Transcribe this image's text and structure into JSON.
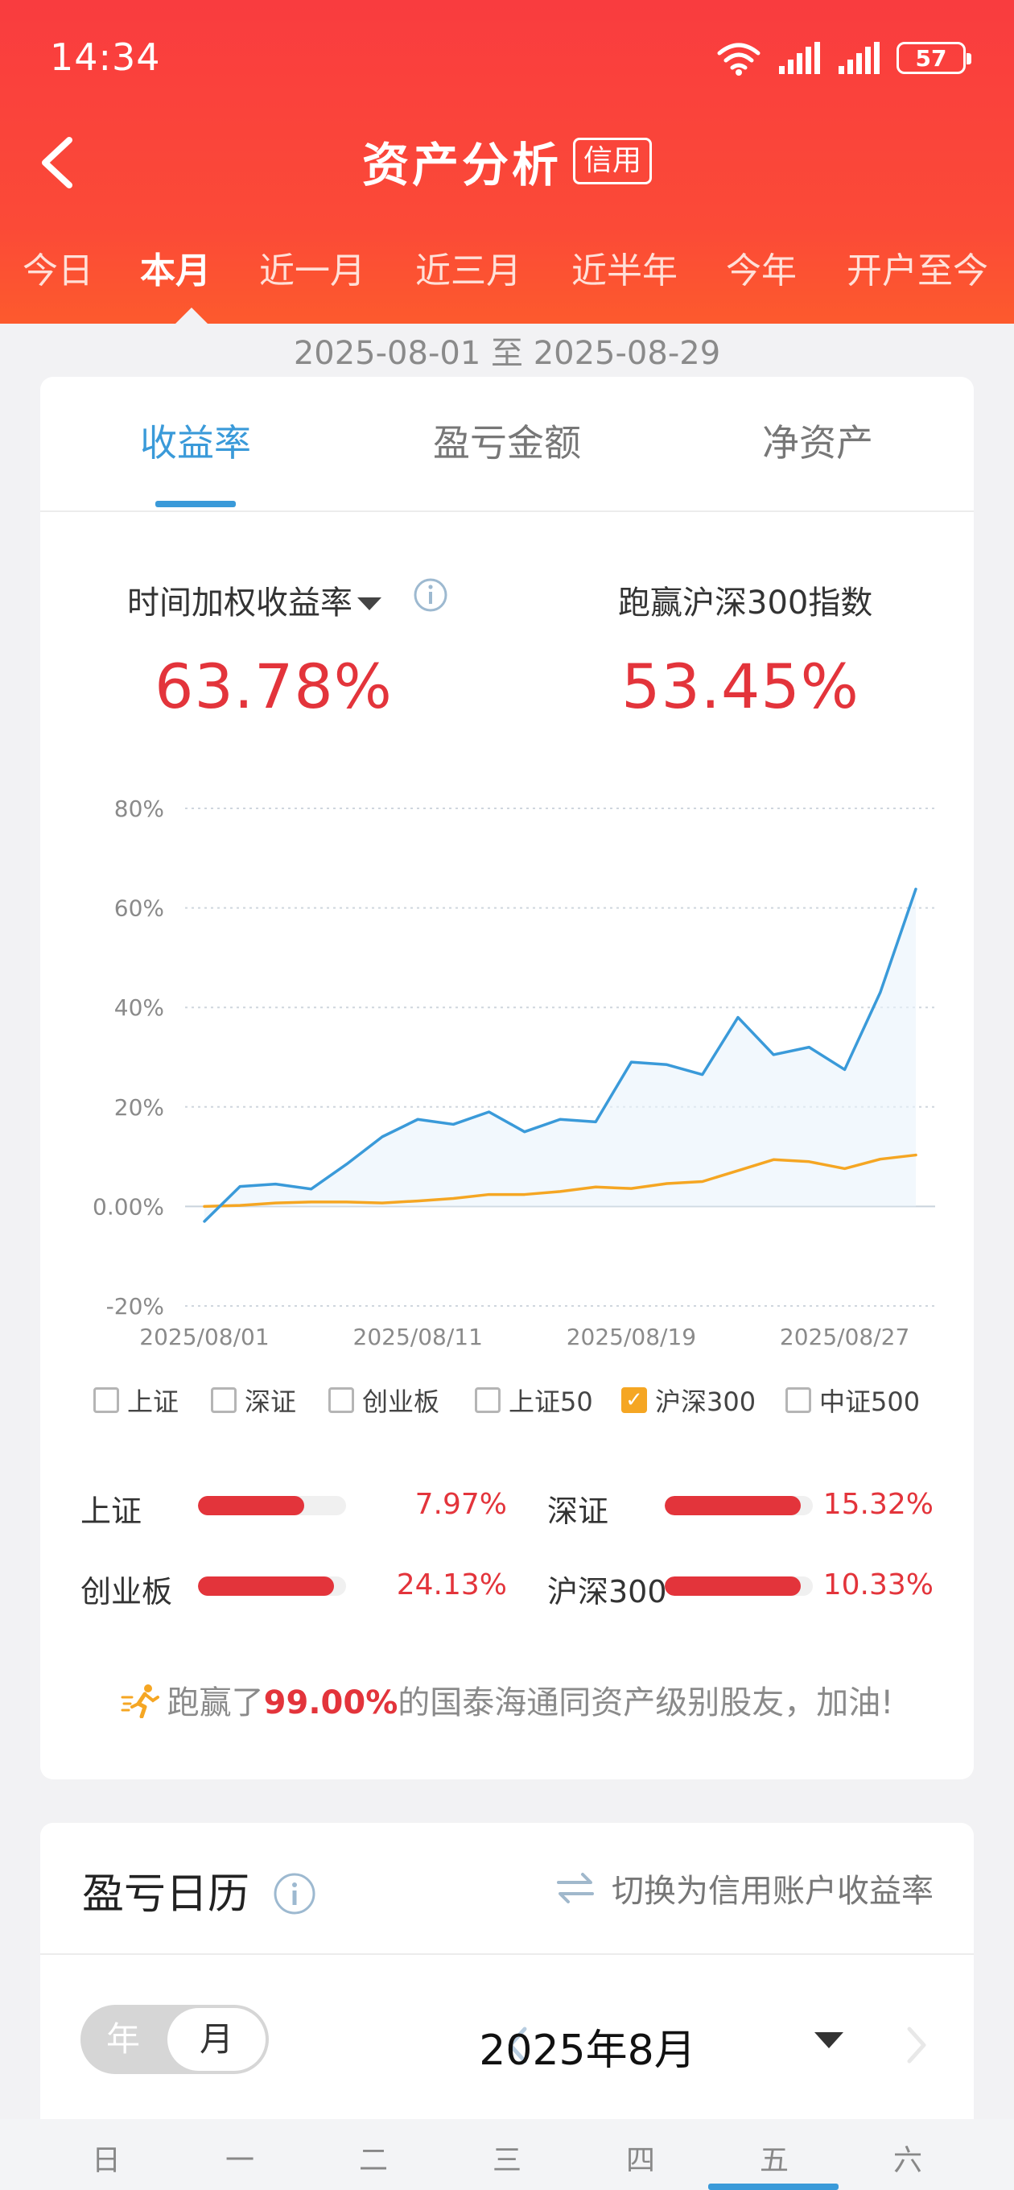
{
  "status_bar": {
    "time": "14:34",
    "battery": "57"
  },
  "header": {
    "title": "资产分析",
    "tag": "信用"
  },
  "period_tabs": [
    {
      "label": "今日"
    },
    {
      "label": "本月",
      "active": true
    },
    {
      "label": "近一月"
    },
    {
      "label": "近三月"
    },
    {
      "label": "近半年"
    },
    {
      "label": "今年"
    },
    {
      "label": "开户至今"
    }
  ],
  "date_range": "2025-08-01 至 2025-08-29",
  "metric_tabs": [
    {
      "label": "收益率",
      "active": true
    },
    {
      "label": "盈亏金额"
    },
    {
      "label": "净资产"
    }
  ],
  "stats": {
    "return_label": "时间加权收益率",
    "return_value": "63.78%",
    "beat_label": "跑赢沪深300指数",
    "beat_value": "53.45%"
  },
  "chart_data": {
    "type": "line",
    "ylim": [
      -20,
      80
    ],
    "y_ticks": [
      "80%",
      "60%",
      "40%",
      "20%",
      "0.00%",
      "-20%"
    ],
    "x_tick_labels": [
      "2025/08/01",
      "2025/08/11",
      "2025/08/19",
      "2025/08/27"
    ],
    "x_tick_index": [
      0,
      6,
      12,
      18
    ],
    "grid": true,
    "series": [
      {
        "color": "#3a9ad9",
        "values": [
          -3,
          4,
          4.5,
          3.5,
          8.5,
          14,
          17.5,
          16.5,
          19,
          15,
          17.5,
          17,
          29,
          28.5,
          26.5,
          38,
          30.5,
          32,
          27.5,
          43,
          63.78
        ]
      },
      {
        "color": "#f5a623",
        "values": [
          0,
          0.2,
          0.7,
          0.9,
          0.9,
          0.7,
          1.1,
          1.6,
          2.4,
          2.4,
          3.0,
          3.9,
          3.6,
          4.6,
          5.0,
          7.2,
          9.4,
          9.0,
          7.6,
          9.5,
          10.33
        ]
      }
    ]
  },
  "legend": [
    {
      "label": "上证",
      "checked": false
    },
    {
      "label": "深证",
      "checked": false
    },
    {
      "label": "创业板",
      "checked": false
    },
    {
      "label": "上证50",
      "checked": false
    },
    {
      "label": "沪深300",
      "checked": true
    },
    {
      "label": "中证500",
      "checked": false
    }
  ],
  "index_bars": [
    {
      "name": "上证",
      "value": "7.97%",
      "fill": 0.72
    },
    {
      "name": "深证",
      "value": "15.32%",
      "fill": 0.92
    },
    {
      "name": "创业板",
      "value": "24.13%",
      "fill": 0.92
    },
    {
      "name": "沪深300",
      "value": "10.33%",
      "fill": 0.92
    }
  ],
  "beat_peers": {
    "prefix": "跑赢了",
    "percent": "99.00%",
    "suffix": "的国泰海通同资产级别股友，加油!"
  },
  "calendar": {
    "title": "盈亏日历",
    "switch_label": "切换为信用账户收益率",
    "toggle_year": "年",
    "toggle_month": "月",
    "month": "2025年8月",
    "weekdays": [
      "日",
      "一",
      "二",
      "三",
      "四",
      "五",
      "六"
    ]
  }
}
